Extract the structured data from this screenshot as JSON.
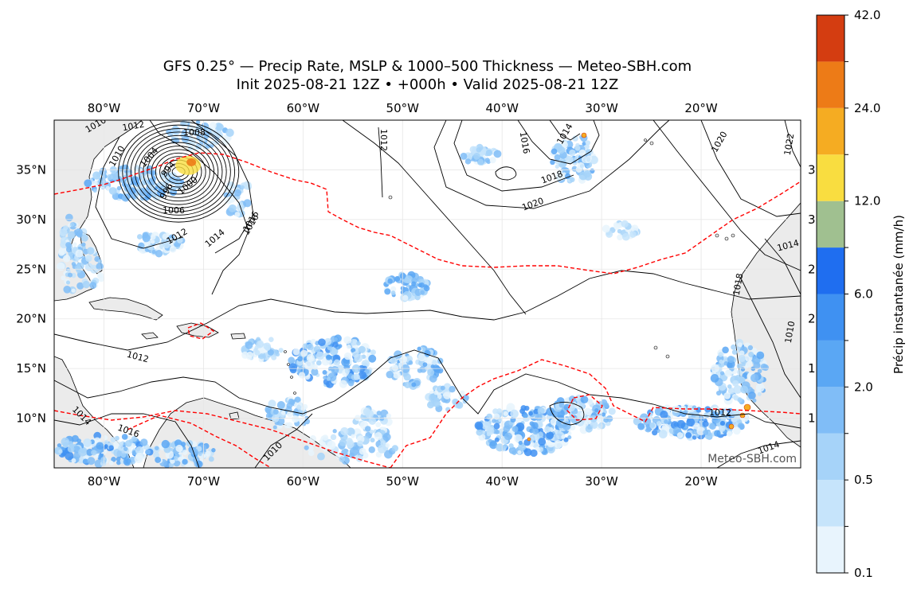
{
  "title": {
    "line1": "GFS 0.25° — Precip Rate, MSLP & 1000–500 Thickness — Meteo-SBH.com",
    "line2": "Init 2025-08-21 12Z • +000h • Valid 2025-08-21 12Z"
  },
  "map": {
    "lon_range": [
      -85,
      -10
    ],
    "lat_range": [
      5,
      40
    ],
    "lon_ticks": [
      {
        "lon": -80,
        "label": "80°W"
      },
      {
        "lon": -70,
        "label": "70°W"
      },
      {
        "lon": -60,
        "label": "60°W"
      },
      {
        "lon": -50,
        "label": "50°W"
      },
      {
        "lon": -40,
        "label": "40°W"
      },
      {
        "lon": -30,
        "label": "30°W"
      },
      {
        "lon": -20,
        "label": "20°W"
      }
    ],
    "lat_ticks": [
      {
        "lat": 35,
        "label": "35°N"
      },
      {
        "lat": 30,
        "label": "30°N"
      },
      {
        "lat": 25,
        "label": "25°N"
      },
      {
        "lat": 20,
        "label": "20°N"
      },
      {
        "lat": 15,
        "label": "15°N"
      },
      {
        "lat": 10,
        "label": "10°N"
      }
    ],
    "right_edge_digits": [
      "3",
      "3",
      "2",
      "2",
      "1",
      "1"
    ],
    "isobar_labels": [
      "1010",
      "1012",
      "1008",
      "1010",
      "1004",
      "1006",
      "1000",
      "1012",
      "1014",
      "1016",
      "1020",
      "1016",
      "1014",
      "1018",
      "1020",
      "1022",
      "1018",
      "1012",
      "1012",
      "1014",
      "1016",
      "1014",
      "1010",
      "1010",
      "1014",
      "1012",
      "1016",
      "996",
      "994"
    ],
    "low_center_lonlat": [
      -72.5,
      34.8
    ],
    "watermark": "Meteo-SBH.com",
    "land_color": "#ebebeb",
    "thickness_line_color": "#ff0000"
  },
  "colorbar": {
    "label": "Précip instantanée (mm/h)",
    "tick_labels": [
      "0.1",
      "0.5",
      "2.0",
      "6.0",
      "12.0",
      "24.0",
      "42.0"
    ],
    "colors": [
      "#e8f4fd",
      "#c6e4fb",
      "#a6d3f9",
      "#80bdf7",
      "#5aa7f4",
      "#3f91f2",
      "#1f6ef0",
      "#a0c090",
      "#f9dd40",
      "#f5ac22",
      "#ed7b17",
      "#d43d11"
    ]
  }
}
